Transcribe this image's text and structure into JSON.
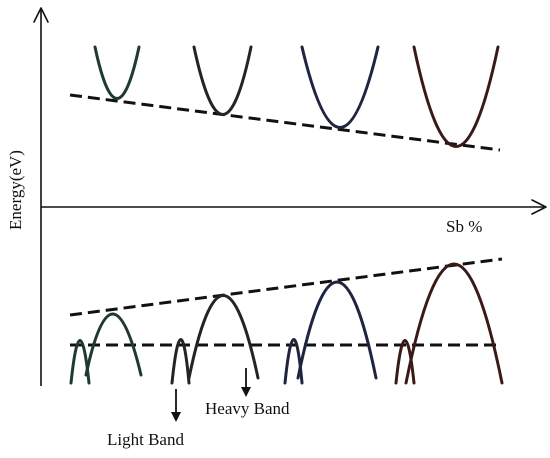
{
  "labels": {
    "y_axis": "Energy(eV)",
    "x_axis": "Sb %",
    "heavy_band": "Heavy Band",
    "light_band": "Light Band"
  },
  "colors": {
    "axis": "#111111",
    "dashed": "#111111",
    "band_1": "#1f3a2e",
    "band_2": "#222426",
    "band_3": "#1f2440",
    "band_4": "#3a1a18"
  }
}
